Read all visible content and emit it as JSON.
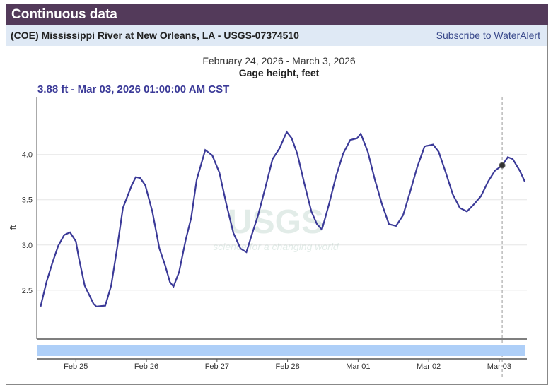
{
  "header": {
    "title": "Continuous data"
  },
  "site": {
    "name": "(COE) Mississippi River at New Orleans, LA - USGS-07374510",
    "subscribe_link": "Subscribe to WaterAlert"
  },
  "chart_data": {
    "type": "line",
    "date_range": "February 24, 2026 - March 3, 2026",
    "title": "Gage height, feet",
    "tooltip": "3.88 ft - Mar 03, 2026 01:00:00 AM CST",
    "ylabel": "ft",
    "xlabel": "",
    "x_units": "hours since Feb 24, 2026 00:00 CST",
    "xlim": [
      10.7,
      177.4
    ],
    "ylim": [
      1.96,
      4.63
    ],
    "yticks": [
      2.5,
      3.0,
      3.5,
      4.0
    ],
    "ytick_labels": [
      "2.5",
      "3.0",
      "3.5",
      "4.0"
    ],
    "xticks": [
      24,
      48,
      72,
      96,
      120,
      144,
      168
    ],
    "xtick_labels": [
      "Feb 25",
      "Feb 26",
      "Feb 27",
      "Feb 28",
      "Mar 01",
      "Mar 02",
      "Mar 03"
    ],
    "cursor": {
      "x": 169,
      "y": 3.88
    },
    "grid": true,
    "watermark": "USGS science for a changing world",
    "series": [
      {
        "name": "Gage height",
        "color": "#3b3a98",
        "x": [
          12,
          14,
          16,
          18,
          20,
          22,
          24,
          25,
          27,
          30,
          31,
          34,
          36,
          38,
          40,
          43,
          44.4,
          45.9,
          47.6,
          50,
          52.4,
          54.3,
          56,
          57.2,
          59.1,
          61.3,
          63.2,
          65.1,
          68,
          70.4,
          72.8,
          75.2,
          77.6,
          80,
          82,
          83.6,
          86,
          88.5,
          90.9,
          93.3,
          95.7,
          97.4,
          99.3,
          101.7,
          104.1,
          106,
          107.7,
          110.1,
          112.5,
          114.9,
          117.3,
          119.7,
          120.9,
          123.3,
          125.7,
          128.1,
          130.5,
          132.9,
          135.3,
          137.7,
          140.1,
          142.6,
          145.5,
          147.4,
          149.8,
          152.2,
          154.6,
          157,
          159.4,
          161.8,
          164.2,
          166.5,
          169,
          170.9,
          172.6,
          175,
          176.7
        ],
        "y": [
          2.32,
          2.59,
          2.8,
          2.99,
          3.11,
          3.14,
          3.04,
          2.86,
          2.55,
          2.35,
          2.32,
          2.33,
          2.55,
          2.96,
          3.41,
          3.66,
          3.75,
          3.74,
          3.66,
          3.37,
          2.96,
          2.78,
          2.59,
          2.54,
          2.7,
          3.05,
          3.3,
          3.72,
          4.05,
          3.99,
          3.8,
          3.45,
          3.13,
          2.96,
          2.92,
          3.09,
          3.33,
          3.64,
          3.95,
          4.07,
          4.25,
          4.18,
          4.01,
          3.68,
          3.37,
          3.23,
          3.17,
          3.45,
          3.76,
          4.01,
          4.16,
          4.18,
          4.23,
          4.03,
          3.72,
          3.45,
          3.23,
          3.21,
          3.33,
          3.59,
          3.86,
          4.09,
          4.11,
          4.03,
          3.8,
          3.56,
          3.41,
          3.37,
          3.45,
          3.54,
          3.7,
          3.82,
          3.88,
          3.97,
          3.95,
          3.82,
          3.7
        ]
      }
    ]
  }
}
